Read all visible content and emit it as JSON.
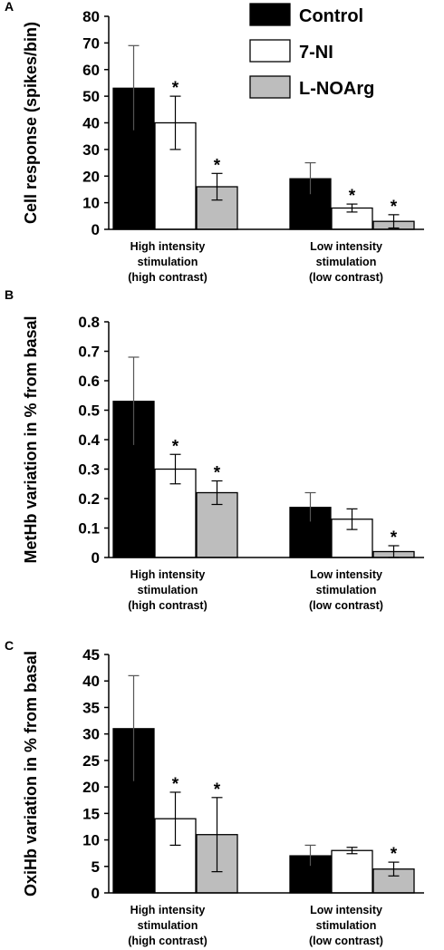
{
  "legend": [
    {
      "label": "Control",
      "color": "#000000"
    },
    {
      "label": "7-NI",
      "color": "#ffffff"
    },
    {
      "label": "L-NOArg",
      "color": "#bdbdbd"
    }
  ],
  "chart_data": [
    {
      "panel": "A",
      "type": "bar",
      "ylabel": "Cell response (spikes/bin)",
      "ylim": [
        0,
        80
      ],
      "yticks": [
        0,
        10,
        20,
        30,
        40,
        50,
        60,
        70,
        80
      ],
      "categories": [
        [
          "High intensity",
          "stimulation",
          "(high contrast)"
        ],
        [
          "Low intensity",
          "stimulation",
          "(low contrast)"
        ]
      ],
      "series": [
        {
          "name": "Control",
          "values": [
            53,
            19
          ],
          "errors": [
            16,
            6
          ],
          "significant": [
            false,
            false
          ]
        },
        {
          "name": "7-NI",
          "values": [
            40,
            8
          ],
          "errors": [
            10,
            1.5
          ],
          "significant": [
            true,
            true
          ]
        },
        {
          "name": "L-NOArg",
          "values": [
            16,
            3
          ],
          "errors": [
            5,
            2.5
          ],
          "significant": [
            true,
            true
          ]
        }
      ]
    },
    {
      "panel": "B",
      "type": "bar",
      "ylabel": "MetHb variation in % from basal",
      "ylim": [
        0,
        0.8
      ],
      "yticks": [
        "0",
        "0.1",
        "0.2",
        "0.3",
        "0.4",
        "0.5",
        "0.6",
        "0.7",
        "0.8"
      ],
      "categories": [
        [
          "High intensity",
          "stimulation",
          "(high contrast)"
        ],
        [
          "Low intensity",
          "stimulation",
          "(low contrast)"
        ]
      ],
      "series": [
        {
          "name": "Control",
          "values": [
            0.53,
            0.17
          ],
          "errors": [
            0.15,
            0.05
          ],
          "significant": [
            false,
            false
          ]
        },
        {
          "name": "7-NI",
          "values": [
            0.3,
            0.13
          ],
          "errors": [
            0.05,
            0.035
          ],
          "significant": [
            true,
            false
          ]
        },
        {
          "name": "L-NOArg",
          "values": [
            0.22,
            0.02
          ],
          "errors": [
            0.04,
            0.02
          ],
          "significant": [
            true,
            true
          ]
        }
      ]
    },
    {
      "panel": "C",
      "type": "bar",
      "ylabel": "OxiHb variation in % from basal",
      "ylim": [
        0,
        45
      ],
      "yticks": [
        0,
        5,
        10,
        15,
        20,
        25,
        30,
        35,
        40,
        45
      ],
      "categories": [
        [
          "High intensity",
          "stimulation",
          "(high contrast)"
        ],
        [
          "Low intensity",
          "stimulation",
          "(low contrast)"
        ]
      ],
      "series": [
        {
          "name": "Control",
          "values": [
            31,
            7
          ],
          "errors": [
            10,
            2
          ],
          "significant": [
            false,
            false
          ]
        },
        {
          "name": "7-NI",
          "values": [
            14,
            8
          ],
          "errors": [
            5,
            0.6
          ],
          "significant": [
            true,
            false
          ]
        },
        {
          "name": "L-NOArg",
          "values": [
            11,
            4.5
          ],
          "errors": [
            7,
            1.3
          ],
          "significant": [
            true,
            true
          ]
        }
      ]
    }
  ]
}
